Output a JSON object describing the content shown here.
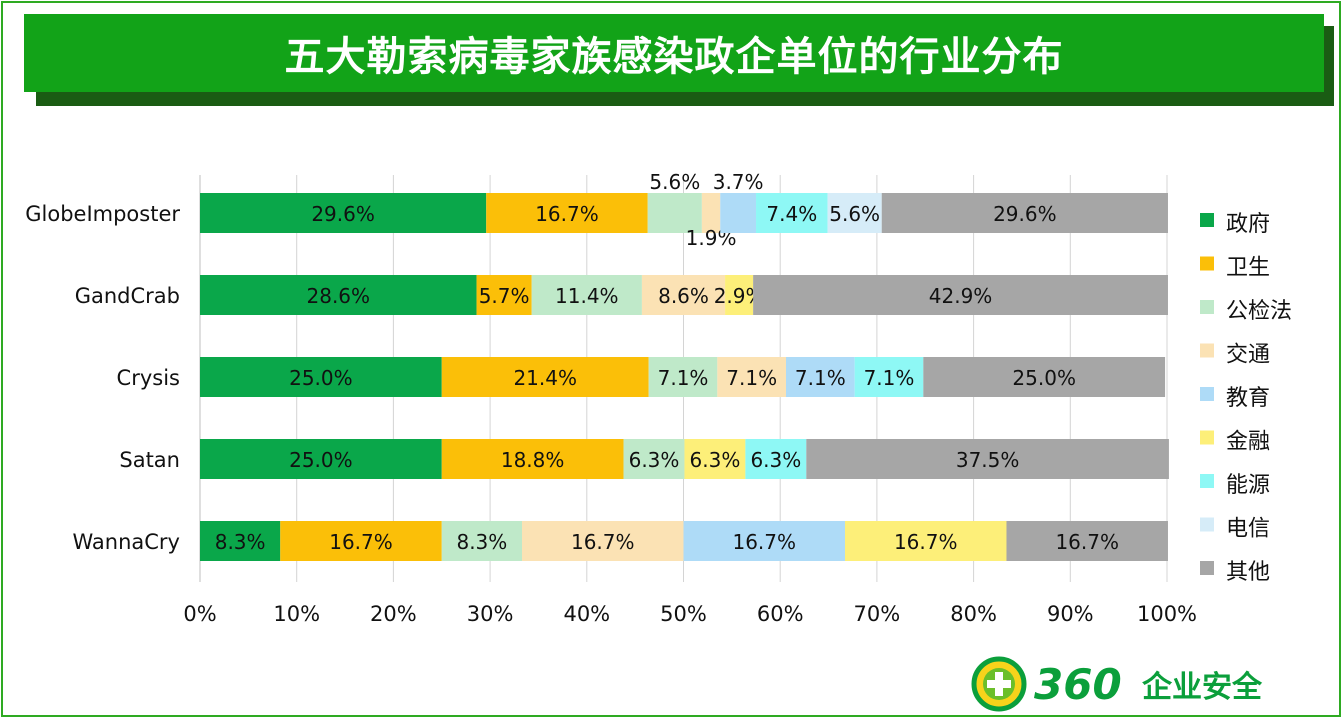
{
  "title": "五大勒索病毒家族感染政企单位的行业分布",
  "logo": {
    "number": "360",
    "text": "企业安全"
  },
  "colors": {
    "政府": "#0aa74a",
    "卫生": "#fbbf08",
    "公检法": "#bfe9c9",
    "交通": "#fbe2b4",
    "教育": "#aedbf7",
    "金融": "#fdef79",
    "能源": "#8ef8f5",
    "电信": "#d6ecf8",
    "其他": "#a6a6a6"
  },
  "chart_data": {
    "type": "bar",
    "orientation": "horizontal",
    "stacked": "percent",
    "categories": [
      "GlobeImposter",
      "GandCrab",
      "Crysis",
      "Satan",
      "WannaCry"
    ],
    "series": [
      {
        "name": "政府",
        "values": [
          29.6,
          28.6,
          25.0,
          25.0,
          8.3
        ],
        "labels": [
          "29.6%",
          "28.6%",
          "25.0%",
          "25.0%",
          "8.3%"
        ]
      },
      {
        "name": "卫生",
        "values": [
          16.7,
          5.7,
          21.4,
          18.8,
          16.7
        ],
        "labels": [
          "16.7%",
          "5.7%",
          "21.4%",
          "18.8%",
          "16.7%"
        ]
      },
      {
        "name": "公检法",
        "values": [
          5.6,
          11.4,
          7.1,
          6.3,
          8.3
        ],
        "labels": [
          "5.6%",
          "11.4%",
          "7.1%",
          "6.3%",
          "8.3%"
        ]
      },
      {
        "name": "交通",
        "values": [
          1.9,
          8.6,
          7.1,
          0,
          16.7
        ],
        "labels": [
          "1.9%",
          "8.6%",
          "7.1%",
          "",
          "16.7%"
        ]
      },
      {
        "name": "教育",
        "values": [
          3.7,
          0,
          7.1,
          0,
          16.7
        ],
        "labels": [
          "3.7%",
          "",
          "7.1%",
          "",
          "16.7%"
        ]
      },
      {
        "name": "金融",
        "values": [
          0,
          2.9,
          0,
          6.3,
          16.7
        ],
        "labels": [
          "",
          "2.9%",
          "",
          "6.3%",
          "16.7%"
        ]
      },
      {
        "name": "能源",
        "values": [
          7.4,
          0,
          7.1,
          6.3,
          0
        ],
        "labels": [
          "7.4%",
          "",
          "7.1%",
          "6.3%",
          ""
        ]
      },
      {
        "name": "电信",
        "values": [
          5.6,
          0,
          0,
          0,
          0
        ],
        "labels": [
          "5.6%",
          "",
          "",
          "",
          ""
        ]
      },
      {
        "name": "其他",
        "values": [
          29.6,
          42.9,
          25.0,
          37.5,
          16.7
        ],
        "labels": [
          "29.6%",
          "42.9%",
          "25.0%",
          "37.5%",
          "16.7%"
        ]
      }
    ],
    "xticks": [
      "0%",
      "10%",
      "20%",
      "30%",
      "40%",
      "50%",
      "60%",
      "70%",
      "80%",
      "90%",
      "100%"
    ],
    "xlim": [
      0,
      100
    ],
    "grid": true,
    "legend": "right"
  }
}
